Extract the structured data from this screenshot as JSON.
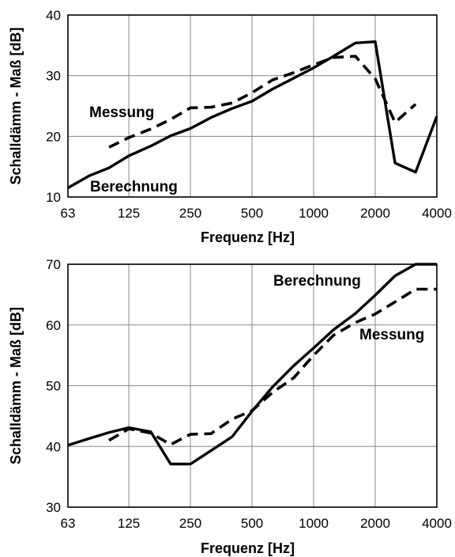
{
  "chart_data": [
    {
      "type": "line",
      "xscale": "log",
      "xlabel": "Frequenz [Hz]",
      "ylabel": "Schalldämm - Maß [dB]",
      "xlim": [
        63,
        4000
      ],
      "ylim": [
        10,
        40
      ],
      "xticks": [
        63,
        125,
        250,
        500,
        1000,
        2000,
        4000
      ],
      "xtick_labels": [
        "63",
        "125",
        "250",
        "500",
        "1000",
        "2000",
        "4000"
      ],
      "yticks": [
        10,
        20,
        30,
        40
      ],
      "ytick_labels": [
        "10",
        "20",
        "30",
        "40"
      ],
      "grid": true,
      "series": [
        {
          "name": "Messung",
          "style": "dashed",
          "color": "#000000",
          "x": [
            100,
            125,
            160,
            200,
            250,
            315,
            400,
            500,
            630,
            800,
            1000,
            1250,
            1600,
            2000,
            2500,
            3150
          ],
          "y": [
            18.2,
            19.8,
            21.2,
            22.8,
            24.7,
            24.8,
            25.5,
            27.2,
            29.3,
            30.5,
            31.8,
            33.0,
            33.2,
            29.5,
            22.3,
            25.3
          ]
        },
        {
          "name": "Berechnung",
          "style": "solid",
          "color": "#000000",
          "x": [
            63,
            80,
            100,
            125,
            160,
            200,
            250,
            315,
            400,
            500,
            630,
            800,
            1000,
            1250,
            1600,
            2000,
            2500,
            3150,
            4000
          ],
          "y": [
            11.5,
            13.5,
            14.8,
            16.8,
            18.4,
            20.1,
            21.3,
            23.1,
            24.6,
            25.8,
            27.8,
            29.6,
            31.3,
            33.2,
            35.4,
            35.6,
            15.6,
            14.1,
            23.3
          ]
        }
      ]
    },
    {
      "type": "line",
      "xscale": "log",
      "xlabel": "Frequenz [Hz]",
      "ylabel": "Schalldämm - Maß [dB]",
      "xlim": [
        63,
        4000
      ],
      "ylim": [
        30,
        70
      ],
      "xticks": [
        63,
        125,
        250,
        500,
        1000,
        2000,
        4000
      ],
      "xtick_labels": [
        "63",
        "125",
        "250",
        "500",
        "1000",
        "2000",
        "4000"
      ],
      "yticks": [
        30,
        40,
        50,
        60,
        70
      ],
      "ytick_labels": [
        "30",
        "40",
        "50",
        "60",
        "70"
      ],
      "grid": true,
      "series": [
        {
          "name": "Berechnung",
          "style": "solid",
          "color": "#000000",
          "x": [
            63,
            80,
            100,
            125,
            160,
            200,
            250,
            315,
            400,
            500,
            630,
            800,
            1000,
            1250,
            1600,
            2000,
            2500,
            3150,
            4000
          ],
          "y": [
            40.2,
            41.3,
            42.3,
            43.1,
            42.4,
            37.1,
            37.1,
            39.3,
            41.6,
            45.8,
            49.8,
            53.3,
            56.2,
            59.2,
            61.9,
            64.9,
            68.1,
            70.0,
            70.0
          ]
        },
        {
          "name": "Messung",
          "style": "dashed",
          "color": "#000000",
          "x": [
            100,
            125,
            160,
            200,
            250,
            315,
            400,
            500,
            630,
            800,
            1000,
            1250,
            1600,
            2000,
            2500,
            3150,
            4000
          ],
          "y": [
            41.0,
            42.9,
            42.2,
            40.3,
            42.0,
            42.1,
            44.5,
            45.9,
            48.9,
            51.3,
            55.0,
            58.3,
            60.4,
            61.8,
            63.8,
            65.9,
            65.9
          ]
        }
      ]
    }
  ]
}
